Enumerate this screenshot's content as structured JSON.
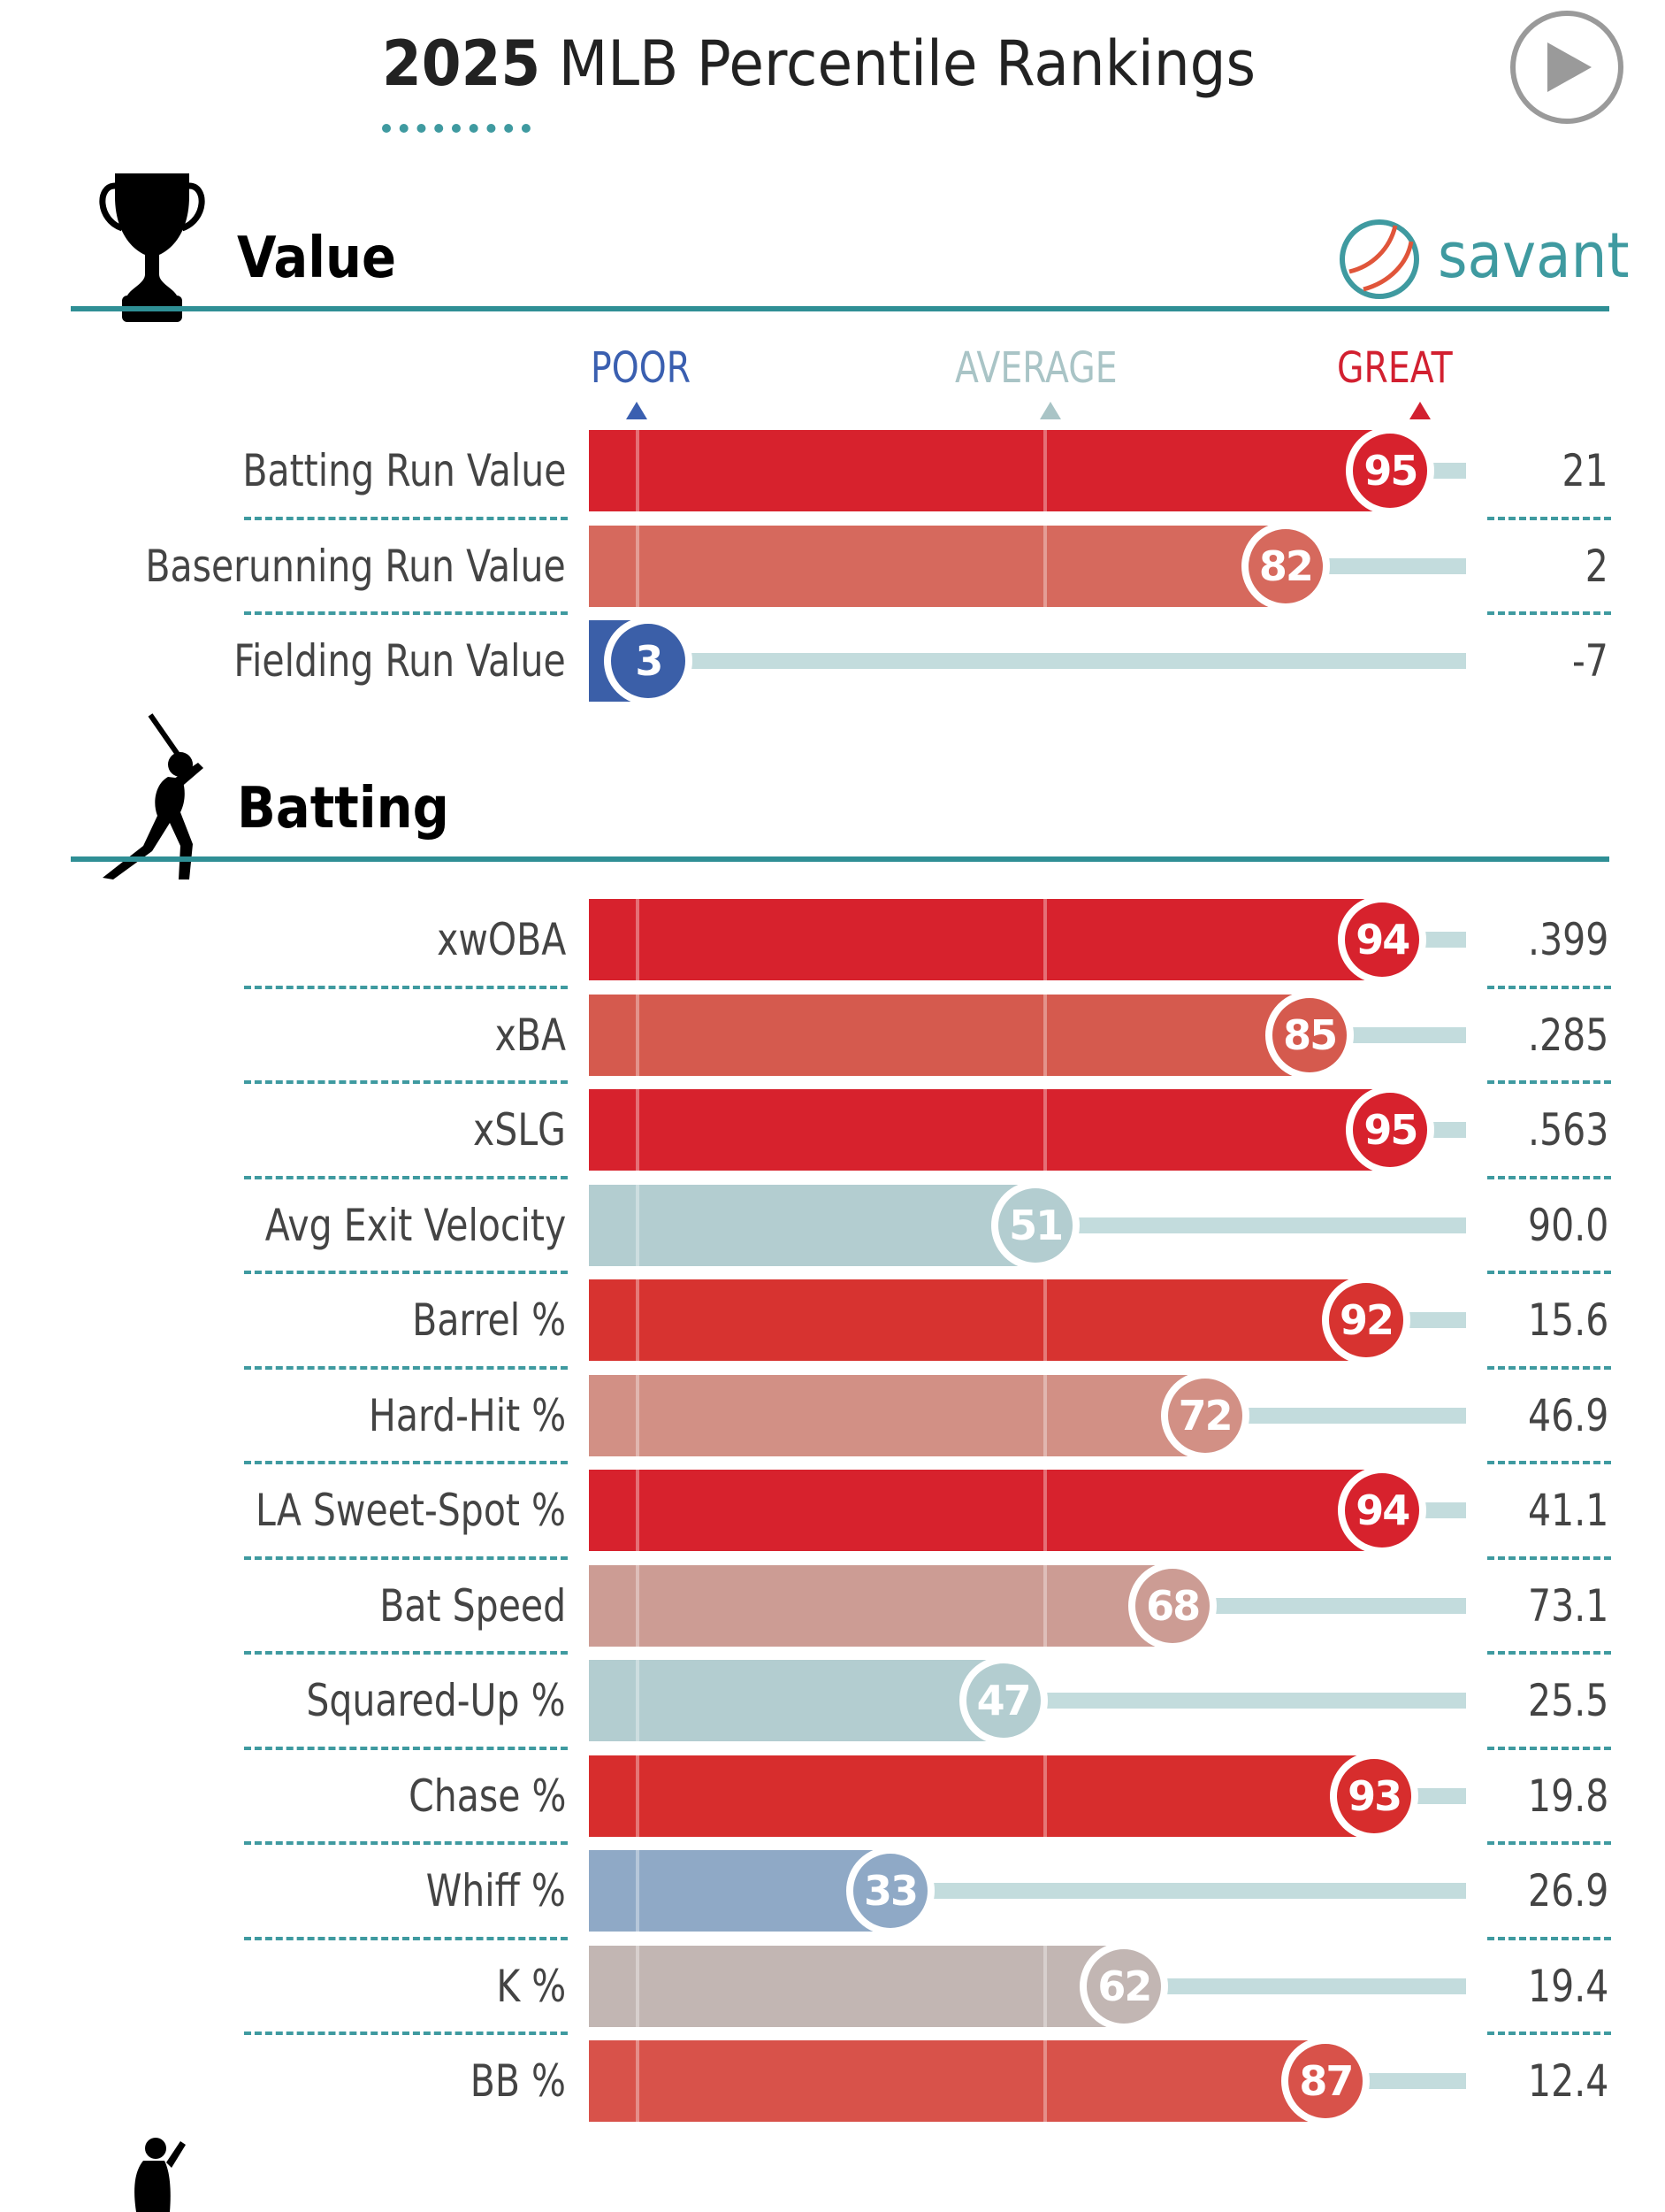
{
  "header": {
    "year": "2025",
    "title_rest": "MLB Percentile Rankings",
    "play_icon": "play-icon"
  },
  "branding": {
    "logo_icon": "baseball-icon",
    "text": "savant"
  },
  "scale": {
    "poor": "POOR",
    "average": "AVERAGE",
    "great": "GREAT",
    "poor_color": "#3a5fb0",
    "average_color": "#a9c4c6",
    "great_color": "#d22030"
  },
  "chart_data": {
    "type": "bar",
    "xlim": [
      0,
      100
    ],
    "sections": [
      {
        "title": "Value",
        "icon": "trophy-icon",
        "metrics": [
          {
            "label": "Batting Run Value",
            "percentile": 95,
            "value": "21",
            "color": "#d7222d"
          },
          {
            "label": "Baserunning Run Value",
            "percentile": 82,
            "value": "2",
            "color": "#d6695d"
          },
          {
            "label": "Fielding Run Value",
            "percentile": 3,
            "value": "-7",
            "color": "#3b5fa8"
          }
        ]
      },
      {
        "title": "Batting",
        "icon": "batter-icon",
        "metrics": [
          {
            "label": "xwOBA",
            "percentile": 94,
            "value": ".399",
            "color": "#d7222d"
          },
          {
            "label": "xBA",
            "percentile": 85,
            "value": ".285",
            "color": "#d55a4e"
          },
          {
            "label": "xSLG",
            "percentile": 95,
            "value": ".563",
            "color": "#d7222d"
          },
          {
            "label": "Avg Exit Velocity",
            "percentile": 51,
            "value": "90.0",
            "color": "#b3cdd0"
          },
          {
            "label": "Barrel %",
            "percentile": 92,
            "value": "15.6",
            "color": "#d73330"
          },
          {
            "label": "Hard-Hit %",
            "percentile": 72,
            "value": "46.9",
            "color": "#d29085"
          },
          {
            "label": "LA Sweet-Spot %",
            "percentile": 94,
            "value": "41.1",
            "color": "#d7222d"
          },
          {
            "label": "Bat Speed",
            "percentile": 68,
            "value": "73.1",
            "color": "#cc9c94"
          },
          {
            "label": "Squared-Up %",
            "percentile": 47,
            "value": "25.5",
            "color": "#b3cdd0"
          },
          {
            "label": "Chase %",
            "percentile": 93,
            "value": "19.8",
            "color": "#d72d2d"
          },
          {
            "label": "Whiff %",
            "percentile": 33,
            "value": "26.9",
            "color": "#8fa9c6"
          },
          {
            "label": "K %",
            "percentile": 62,
            "value": "19.4",
            "color": "#c2b6b3"
          },
          {
            "label": "BB %",
            "percentile": 87,
            "value": "12.4",
            "color": "#d8524a"
          }
        ]
      }
    ],
    "next_section_icon": "fielder-icon"
  }
}
